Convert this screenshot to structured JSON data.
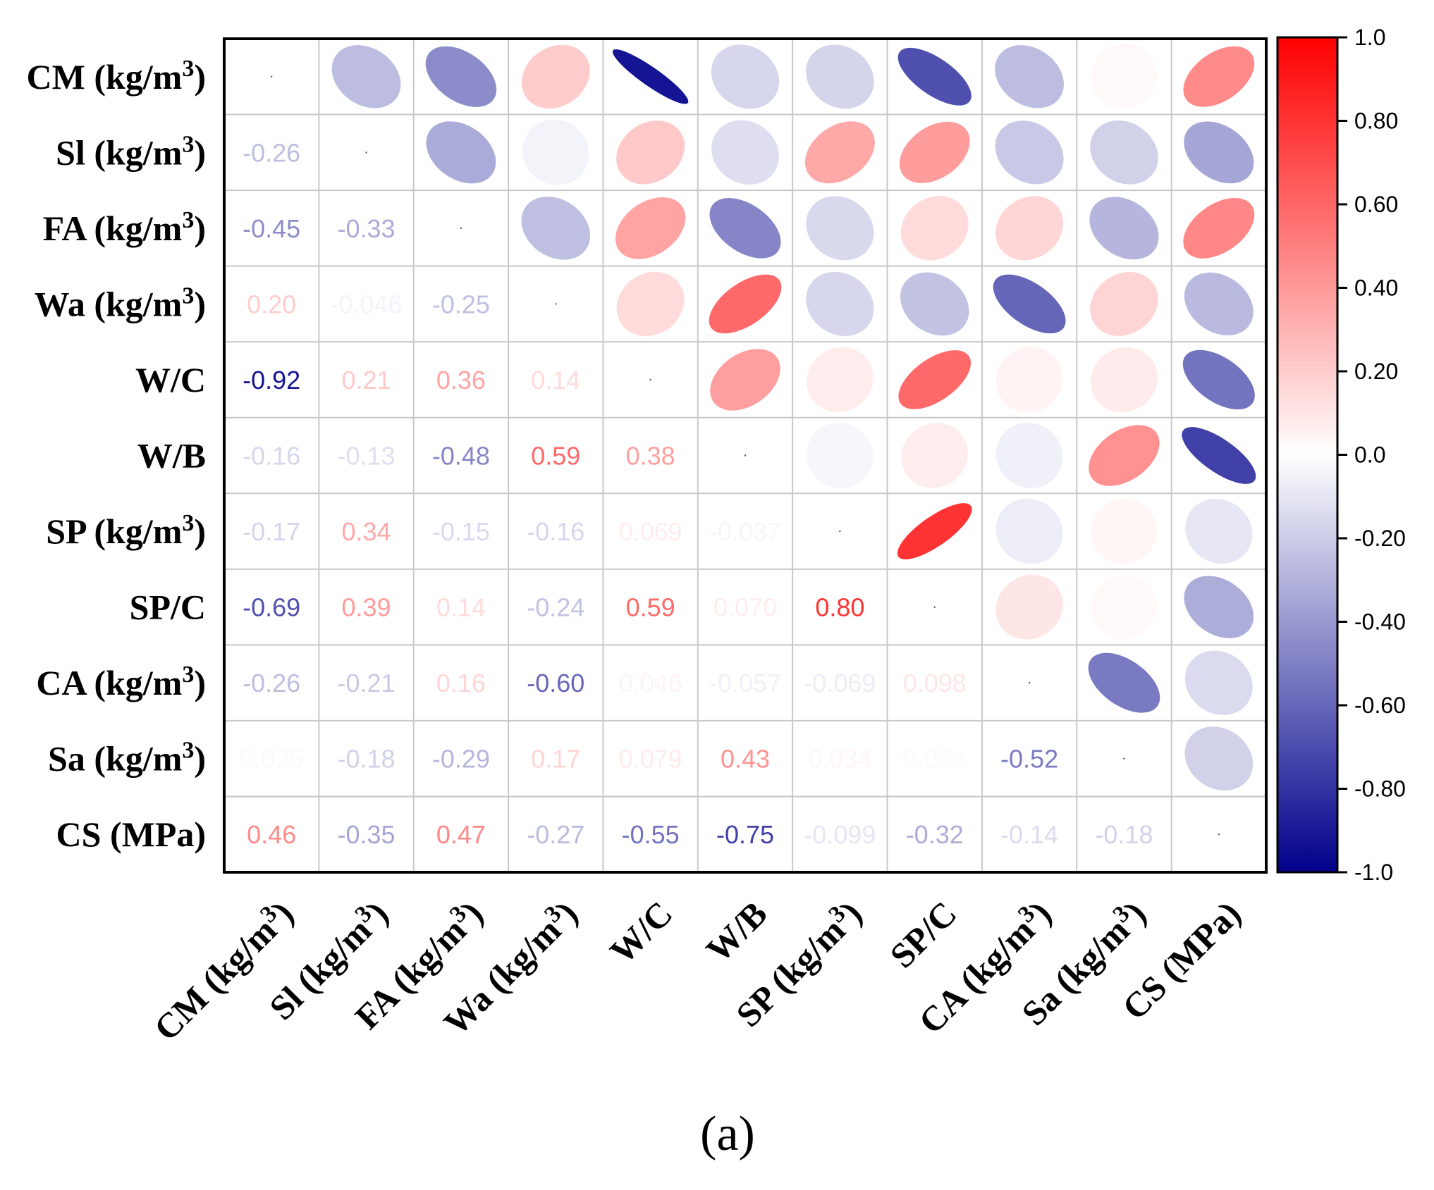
{
  "chart_data": {
    "type": "heatmap",
    "style": "correlation-ellipse",
    "variables": [
      "CM (kg/m3)",
      "Sl (kg/m3)",
      "FA (kg/m3)",
      "Wa (kg/m3)",
      "W/C",
      "W/B",
      "SP (kg/m3)",
      "SP/C",
      "CA (kg/m3)",
      "Sa (kg/m3)",
      "CS (MPa)"
    ],
    "labels": [
      {
        "base": "CM (kg/m",
        "sup": "3",
        "tail": ")"
      },
      {
        "base": "Sl (kg/m",
        "sup": "3",
        "tail": ")"
      },
      {
        "base": "FA (kg/m",
        "sup": "3",
        "tail": ")"
      },
      {
        "base": "Wa (kg/m",
        "sup": "3",
        "tail": ")"
      },
      {
        "base": "W/C",
        "sup": "",
        "tail": ""
      },
      {
        "base": "W/B",
        "sup": "",
        "tail": ""
      },
      {
        "base": "SP (kg/m",
        "sup": "3",
        "tail": ")"
      },
      {
        "base": "SP/C",
        "sup": "",
        "tail": ""
      },
      {
        "base": "CA (kg/m",
        "sup": "3",
        "tail": ")"
      },
      {
        "base": "Sa (kg/m",
        "sup": "3",
        "tail": ")"
      },
      {
        "base": "CS (MPa)",
        "sup": "",
        "tail": ""
      }
    ],
    "matrix": [
      [
        1,
        -0.26,
        -0.45,
        0.2,
        -0.92,
        -0.16,
        -0.17,
        -0.69,
        -0.26,
        0.025,
        0.46
      ],
      [
        -0.26,
        1,
        -0.33,
        -0.046,
        0.21,
        -0.13,
        0.34,
        0.39,
        -0.21,
        -0.18,
        -0.35
      ],
      [
        -0.45,
        -0.33,
        1,
        -0.25,
        0.36,
        -0.48,
        -0.15,
        0.14,
        0.16,
        -0.29,
        0.47
      ],
      [
        0.2,
        -0.046,
        -0.25,
        1,
        0.14,
        0.59,
        -0.16,
        -0.24,
        -0.6,
        0.17,
        -0.27
      ],
      [
        -0.92,
        0.21,
        0.36,
        0.14,
        1,
        0.38,
        0.069,
        0.59,
        0.046,
        0.079,
        -0.55
      ],
      [
        -0.16,
        -0.13,
        -0.48,
        0.59,
        0.38,
        1,
        -0.037,
        0.07,
        -0.057,
        0.43,
        -0.75
      ],
      [
        -0.17,
        0.34,
        -0.15,
        -0.16,
        0.069,
        -0.037,
        1,
        0.8,
        -0.069,
        0.034,
        -0.099
      ],
      [
        -0.69,
        0.39,
        0.14,
        -0.24,
        0.59,
        0.07,
        0.8,
        1,
        0.098,
        0.024,
        -0.32
      ],
      [
        -0.26,
        -0.21,
        0.16,
        -0.6,
        0.046,
        -0.057,
        -0.069,
        0.098,
        1,
        -0.52,
        -0.14
      ],
      [
        0.025,
        -0.18,
        -0.29,
        0.17,
        0.079,
        0.43,
        0.034,
        0.024,
        -0.52,
        1,
        -0.18
      ],
      [
        0.46,
        -0.35,
        0.47,
        -0.27,
        -0.55,
        -0.75,
        -0.099,
        -0.32,
        -0.14,
        -0.18,
        1
      ]
    ],
    "value_labels": [
      [
        "",
        "",
        "",
        "",
        "",
        "",
        "",
        "",
        "",
        "",
        ""
      ],
      [
        "-0.26",
        "",
        "",
        "",
        "",
        "",
        "",
        "",
        "",
        "",
        ""
      ],
      [
        "-0.45",
        "-0.33",
        "",
        "",
        "",
        "",
        "",
        "",
        "",
        "",
        ""
      ],
      [
        "0.20",
        "-0.046",
        "-0.25",
        "",
        "",
        "",
        "",
        "",
        "",
        "",
        ""
      ],
      [
        "-0.92",
        "0.21",
        "0.36",
        "0.14",
        "",
        "",
        "",
        "",
        "",
        "",
        ""
      ],
      [
        "-0.16",
        "-0.13",
        "-0.48",
        "0.59",
        "0.38",
        "",
        "",
        "",
        "",
        "",
        ""
      ],
      [
        "-0.17",
        "0.34",
        "-0.15",
        "-0.16",
        "0.069",
        "-0.037",
        "",
        "",
        "",
        "",
        ""
      ],
      [
        "-0.69",
        "0.39",
        "0.14",
        "-0.24",
        "0.59",
        "0.070",
        "0.80",
        "",
        "",
        "",
        ""
      ],
      [
        "-0.26",
        "-0.21",
        "0.16",
        "-0.60",
        "0.046",
        "-0.057",
        "-0.069",
        "0.098",
        "",
        "",
        ""
      ],
      [
        "0.025",
        "-0.18",
        "-0.29",
        "0.17",
        "0.079",
        "0.43",
        "0.034",
        "0.024",
        "-0.52",
        "",
        ""
      ],
      [
        "0.46",
        "-0.35",
        "0.47",
        "-0.27",
        "-0.55",
        "-0.75",
        "-0.099",
        "-0.32",
        "-0.14",
        "-0.18",
        ""
      ]
    ],
    "lower_triangle": "numbers",
    "upper_triangle": "ellipses",
    "colorbar": {
      "range": [
        -1.0,
        1.0
      ],
      "ticks": [
        "1.0",
        "0.80",
        "0.60",
        "0.40",
        "0.20",
        "0.0",
        "-0.20",
        "-0.40",
        "-0.60",
        "-0.80",
        "-1.0"
      ],
      "colors": {
        "negative": "#00008B",
        "zero": "#FFFFFF",
        "positive": "#FF0000"
      }
    },
    "caption": "(a)"
  }
}
